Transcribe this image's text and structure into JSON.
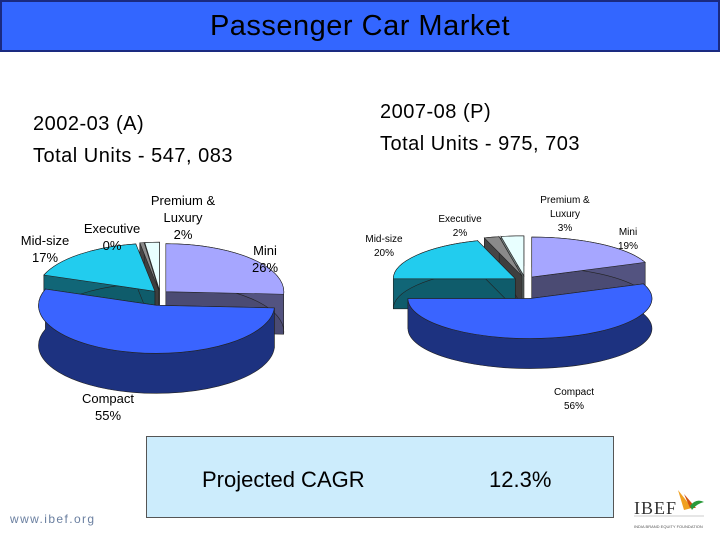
{
  "title": "Passenger Car Market",
  "left": {
    "heading_line1": "2002-03 (A)",
    "heading_line2": "Total Units - 547, 083"
  },
  "right": {
    "heading_line1": "2007-08 (P)",
    "heading_line2": "Total Units - 975, 703"
  },
  "cagr": {
    "label": "Projected CAGR",
    "value": "12.3%"
  },
  "footer": {
    "url": "www.ibef.org"
  },
  "logo": {
    "name": "IBEF",
    "tagline": "INDIA BRAND EQUITY FOUNDATION"
  },
  "colors": {
    "mini": "#a6a6ff",
    "compact": "#3a64ff",
    "midsize": "#22ccee",
    "executive": "#8a8a8a",
    "premium": "#e8ffff",
    "title_bar": "#3366ff",
    "cagr_box": "#ccecfc"
  },
  "chart_data": [
    {
      "type": "pie",
      "title": "2002-03 (A)",
      "slices": [
        {
          "label": "Mini",
          "value": 26,
          "display": "26%"
        },
        {
          "label": "Compact",
          "value": 55,
          "display": "55%"
        },
        {
          "label": "Mid-size",
          "value": 17,
          "display": "17%"
        },
        {
          "label": "Executive",
          "value": 0,
          "display": "0%"
        },
        {
          "label": "Premium & Luxury",
          "label_lines": [
            "Premium &",
            "Luxury"
          ],
          "value": 2,
          "display": "2%"
        }
      ]
    },
    {
      "type": "pie",
      "title": "2007-08 (P)",
      "slices": [
        {
          "label": "Mini",
          "value": 19,
          "display": "19%"
        },
        {
          "label": "Compact",
          "value": 56,
          "display": "56%"
        },
        {
          "label": "Mid-size",
          "value": 20,
          "display": "20%"
        },
        {
          "label": "Executive",
          "value": 2,
          "display": "2%"
        },
        {
          "label": "Premium & Luxury",
          "label_lines": [
            "Premium &",
            "Luxury"
          ],
          "value": 3,
          "display": "3%"
        }
      ]
    }
  ]
}
